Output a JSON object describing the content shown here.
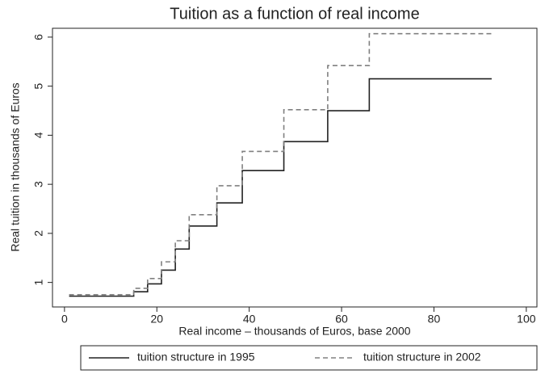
{
  "chart_data": {
    "type": "line",
    "drawstyle": "steps-post",
    "title": "Tuition as a function of real income",
    "x_label": "Real income – thousands of Euros, base 2000",
    "y_label": "Real tuition in thousands of Euros",
    "x": [
      1,
      15,
      18,
      21,
      24,
      27,
      33,
      38.5,
      47.5,
      57,
      66,
      92.5
    ],
    "series": [
      {
        "name": "tuition structure in 1995",
        "color": "#222222",
        "dash": "solid",
        "values": [
          0.72,
          0.81,
          0.97,
          1.25,
          1.68,
          2.15,
          2.62,
          3.28,
          3.87,
          4.5,
          5.15,
          5.15
        ]
      },
      {
        "name": "tuition structure in 2002",
        "color": "#808080",
        "dash": "dashed",
        "values": [
          0.75,
          0.88,
          1.08,
          1.42,
          1.85,
          2.38,
          2.97,
          3.67,
          4.52,
          5.42,
          6.07,
          6.07
        ]
      }
    ],
    "xlim": [
      -2.6,
      102.3
    ],
    "ylim": [
      0.5,
      6.18
    ],
    "xticks": [
      0,
      20,
      40,
      60,
      80,
      100
    ],
    "yticks": [
      1,
      2,
      3,
      4,
      5,
      6
    ],
    "legend": "bottom"
  }
}
